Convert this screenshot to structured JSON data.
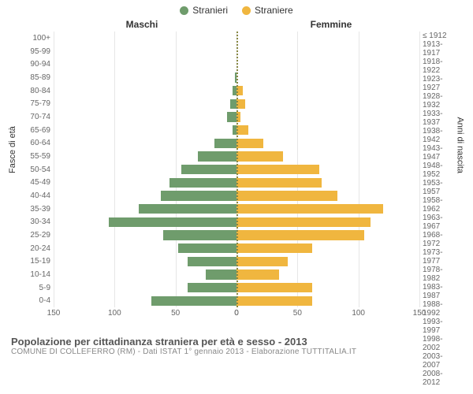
{
  "legend": {
    "male": {
      "label": "Stranieri",
      "color": "#6f9c6c"
    },
    "female": {
      "label": "Straniere",
      "color": "#f0b63f"
    }
  },
  "column_titles": {
    "left": "Maschi",
    "right": "Femmine"
  },
  "yaxis_label_left": "Fasce di età",
  "yaxis_label_right": "Anni di nascita",
  "age_groups": [
    "100+",
    "95-99",
    "90-94",
    "85-89",
    "80-84",
    "75-79",
    "70-74",
    "65-69",
    "60-64",
    "55-59",
    "50-54",
    "45-49",
    "40-44",
    "35-39",
    "30-34",
    "25-29",
    "20-24",
    "15-19",
    "10-14",
    "5-9",
    "0-4"
  ],
  "birth_years": [
    "≤ 1912",
    "1913-1917",
    "1918-1922",
    "1923-1927",
    "1928-1932",
    "1933-1937",
    "1938-1942",
    "1943-1947",
    "1948-1952",
    "1953-1957",
    "1958-1962",
    "1963-1967",
    "1968-1972",
    "1973-1977",
    "1978-1982",
    "1983-1987",
    "1988-1992",
    "1993-1997",
    "1998-2002",
    "2003-2007",
    "2008-2012"
  ],
  "male_values": [
    0,
    0,
    0,
    1,
    3,
    5,
    8,
    3,
    18,
    32,
    45,
    55,
    62,
    80,
    105,
    60,
    48,
    40,
    25,
    40,
    70
  ],
  "female_values": [
    0,
    0,
    0,
    0,
    5,
    7,
    3,
    10,
    22,
    38,
    68,
    70,
    83,
    120,
    110,
    105,
    62,
    42,
    35,
    62,
    62
  ],
  "chart": {
    "type": "population-pyramid",
    "xlim": 150,
    "xticks": [
      0,
      50,
      100,
      150
    ],
    "bar_height_pct": 74,
    "grid_color": "#e6e6e6",
    "center_line_color": "#888844",
    "background_color": "#ffffff",
    "axis_font_size": 10,
    "axis_color": "#666666"
  },
  "title": "Popolazione per cittadinanza straniera per età e sesso - 2013",
  "subtitle": "COMUNE DI COLLEFERRO (RM) - Dati ISTAT 1° gennaio 2013 - Elaborazione TUTTITALIA.IT"
}
